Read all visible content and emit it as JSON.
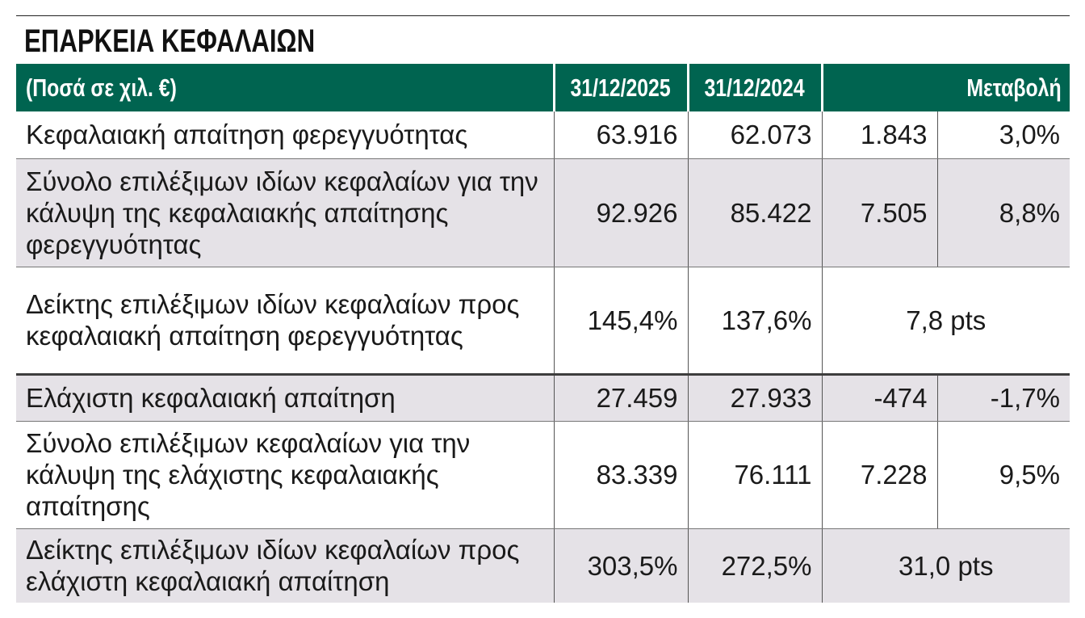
{
  "title": "ΕΠΑΡΚΕΙΑ ΚΕΦΑΛΑΙΩΝ",
  "header": {
    "label": "(Ποσά σε χιλ. €)",
    "col1": "31/12/2025",
    "col2": "31/12/2024",
    "change": "Μεταβολή"
  },
  "rows": [
    {
      "label": "Κεφαλαιακή απαίτηση φερεγγυότητας",
      "v2025": "63.916",
      "v2024": "62.073",
      "change_abs": "1.843",
      "change_pct": "3,0%"
    },
    {
      "label": "Σύνολο επιλέξιμων ιδίων κεφαλαίων για την κάλυψη της κεφαλαιακής απαίτησης φερεγγυότητας",
      "v2025": "92.926",
      "v2024": "85.422",
      "change_abs": "7.505",
      "change_pct": "8,8%"
    },
    {
      "label": "Δείκτης επιλέξιμων ιδίων κεφαλαίων προς κεφαλαιακή απαίτηση φερεγγυότητας",
      "v2025": "145,4%",
      "v2024": "137,6%",
      "change": "7,8 pts"
    },
    {
      "label": "Ελάχιστη κεφαλαιακή απαίτηση",
      "v2025": "27.459",
      "v2024": "27.933",
      "change_abs": "-474",
      "change_pct": "-1,7%"
    },
    {
      "label": "Σύνολο επιλέξιμων κεφαλαίων για την κάλυψη της ελάχιστης κεφαλαιακής απαίτησης",
      "v2025": "83.339",
      "v2024": "76.111",
      "change_abs": "7.228",
      "change_pct": "9,5%"
    },
    {
      "label": "Δείκτης επιλέξιμων ιδίων κεφαλαίων προς ελάχιστη κεφαλαιακή απαίτηση",
      "v2025": "303,5%",
      "v2024": "272,5%",
      "change": "31,0 pts"
    }
  ],
  "colors": {
    "header_bg": "#006450",
    "shade_bg": "#e5e2e7"
  }
}
